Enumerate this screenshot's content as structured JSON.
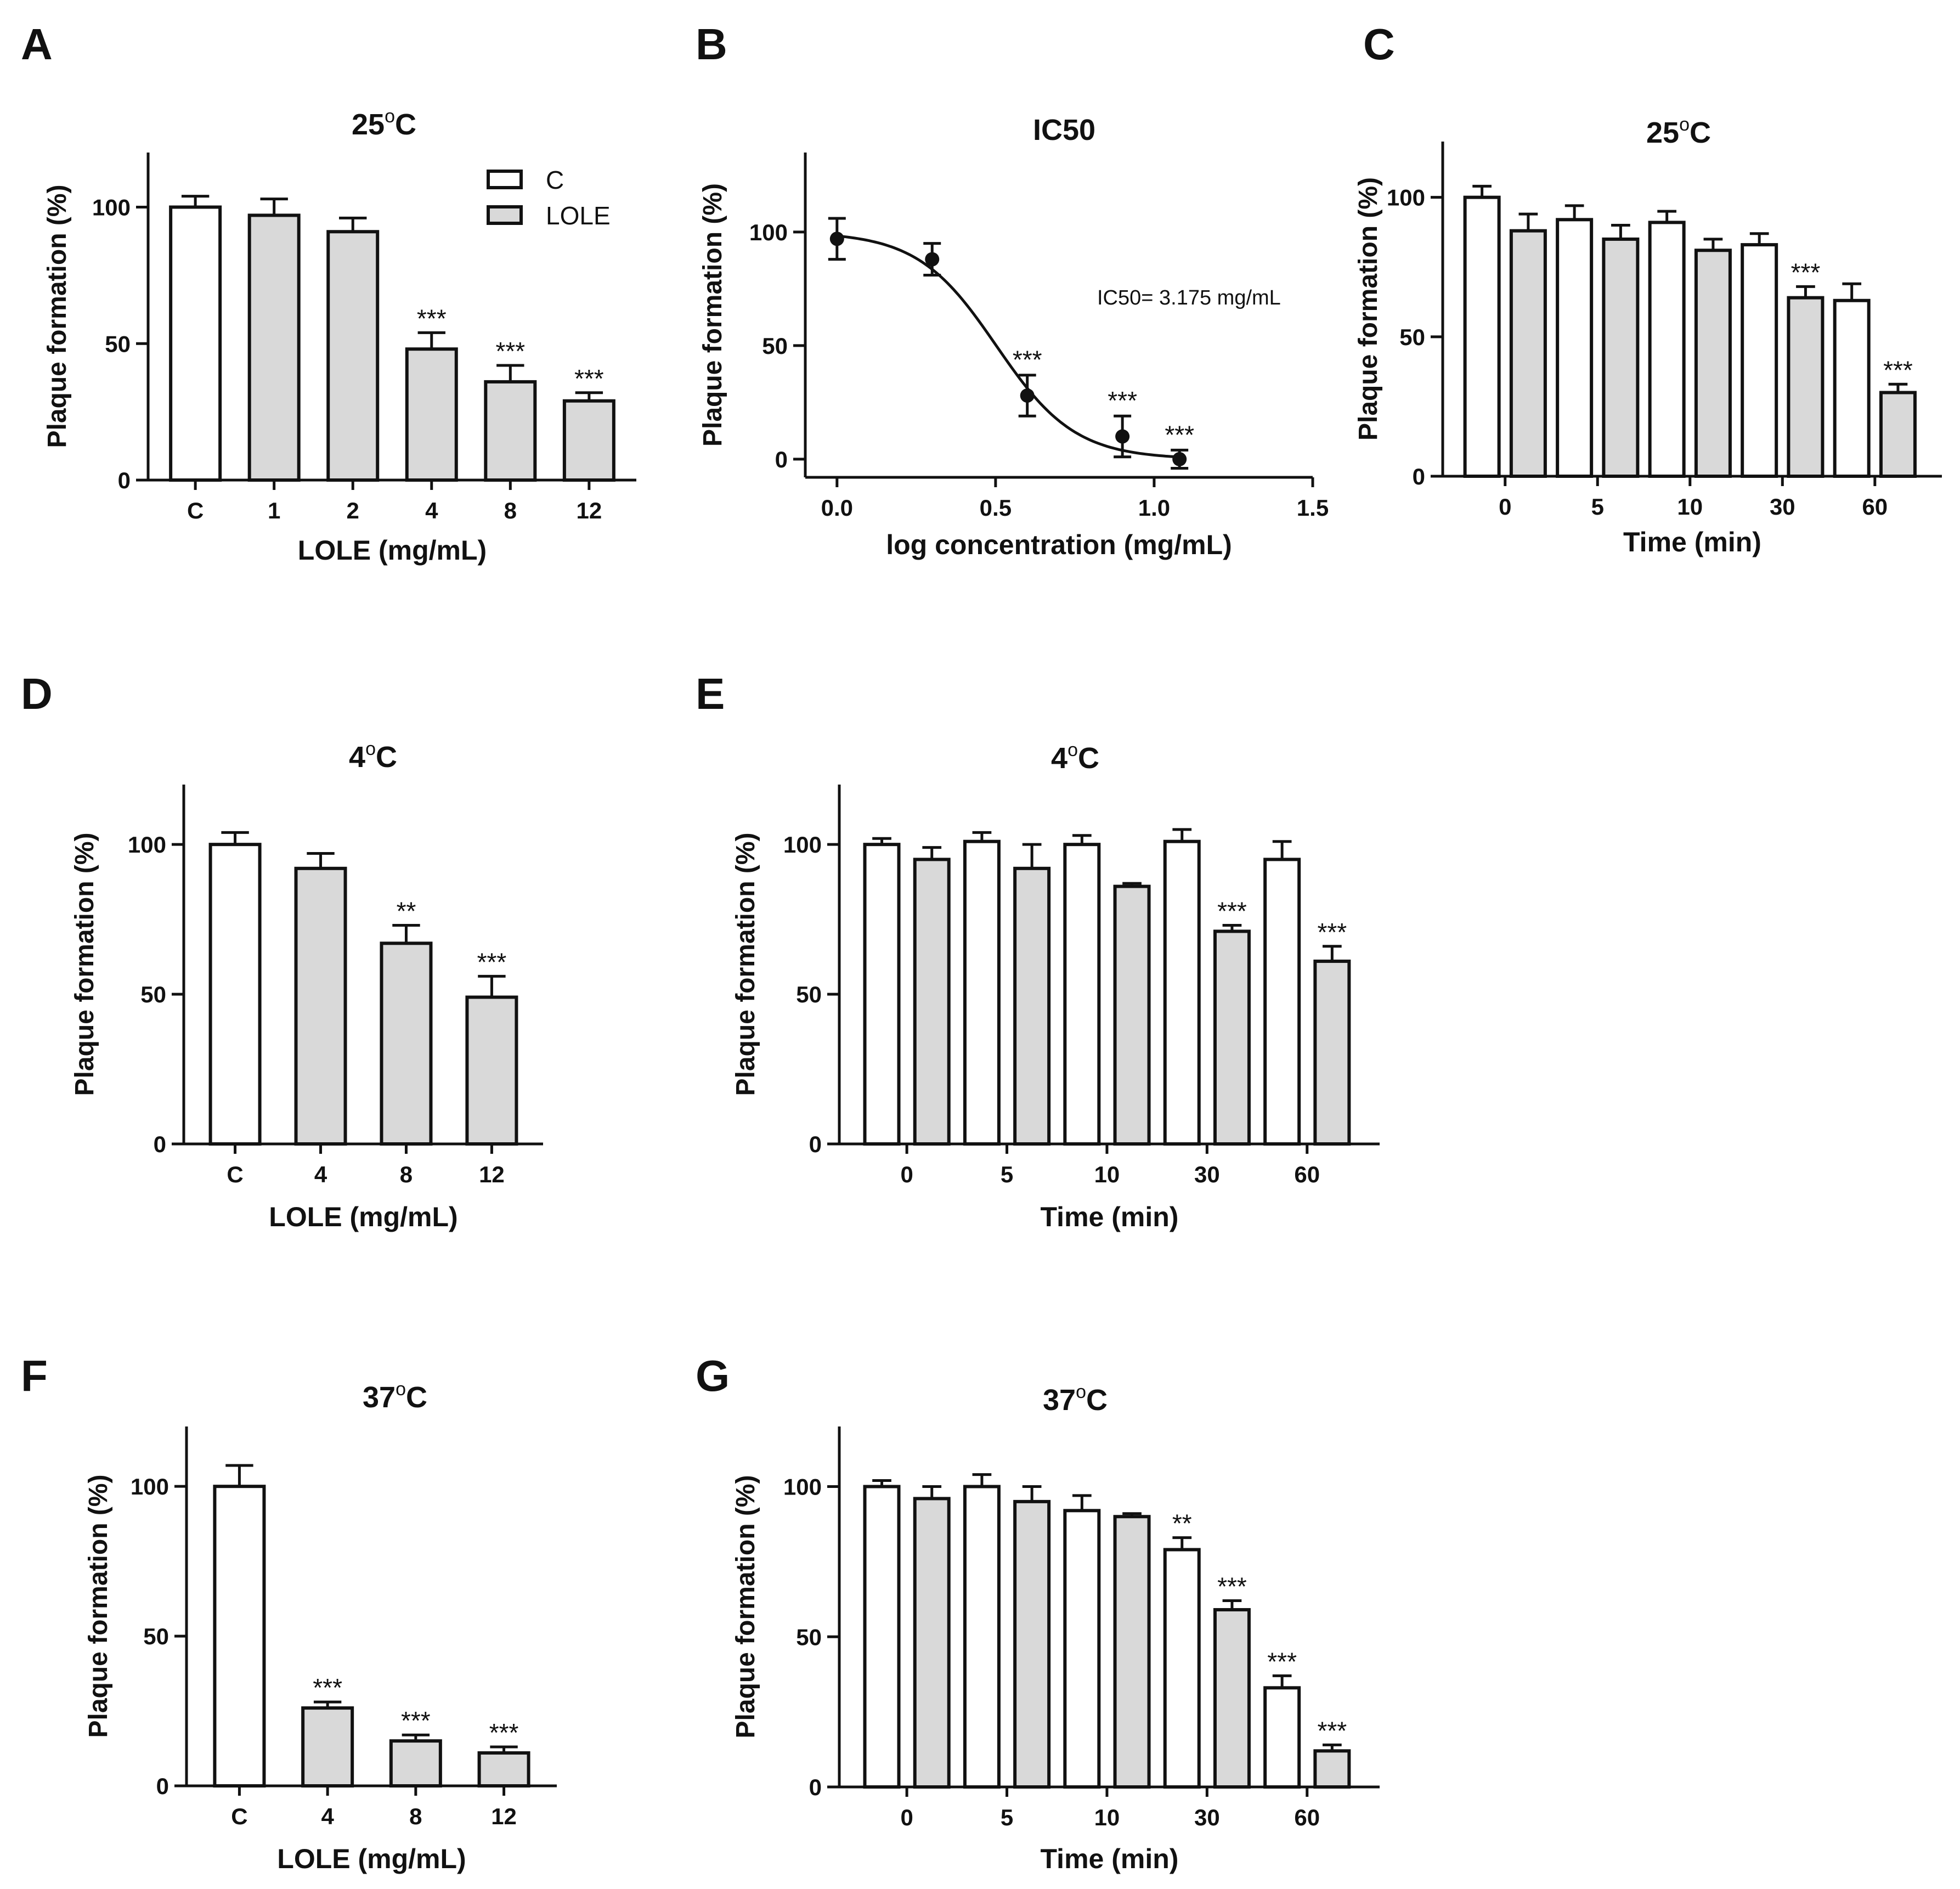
{
  "colors": {
    "control_fill": "#ffffff",
    "treated_fill": "#d9d9d9",
    "stroke": "#111111"
  },
  "chart_data": [
    {
      "id": "A",
      "panel_letter": "A",
      "type": "bar",
      "title": "25",
      "title_unit": "C",
      "ylabel": "Plaque formation (%)",
      "xlabel": "LOLE (mg/mL)",
      "ylim": [
        0,
        120
      ],
      "yticks": [
        0,
        50,
        100
      ],
      "categories": [
        "C",
        "1",
        "2",
        "4",
        "8",
        "12"
      ],
      "groups": [
        "C",
        "LOLE",
        "LOLE",
        "LOLE",
        "LOLE",
        "LOLE"
      ],
      "values": [
        100,
        97,
        91,
        48,
        36,
        29
      ],
      "errors": [
        4,
        6,
        5,
        6,
        6,
        3
      ],
      "significance": [
        "",
        "",
        "",
        "***",
        "***",
        "***"
      ],
      "legend": [
        {
          "label": "C",
          "group": "C"
        },
        {
          "label": "LOLE",
          "group": "LOLE"
        }
      ]
    },
    {
      "id": "B",
      "panel_letter": "B",
      "type": "scatter",
      "title": "IC50",
      "ylabel": "Plaque formation (%)",
      "xlabel": "log concentration (mg/mL)",
      "xlim": [
        -0.1,
        1.5
      ],
      "xticks": [
        "0.0",
        "0.5",
        "1.0",
        "1.5"
      ],
      "ylim": [
        -8,
        135
      ],
      "yticks": [
        0,
        50,
        100
      ],
      "x": [
        0.0,
        0.3,
        0.6,
        0.9,
        1.08
      ],
      "y": [
        97,
        88,
        28,
        10,
        0
      ],
      "errors": [
        9,
        7,
        9,
        9,
        4
      ],
      "significance": [
        "",
        "",
        "***",
        "***",
        "***"
      ],
      "fit": {
        "top": 100,
        "bottom": 0,
        "log_ic50": 0.502,
        "hill": 3.5
      },
      "annotation": "IC50= 3.175 mg/mL"
    },
    {
      "id": "C",
      "panel_letter": "C",
      "type": "bar",
      "title": "25",
      "title_unit": "C",
      "ylabel": "Plaque formation (%)",
      "xlabel": "Time (min)",
      "ylim": [
        0,
        120
      ],
      "yticks": [
        0,
        50,
        100
      ],
      "group_labels": [
        "0",
        "5",
        "10",
        "30",
        "60"
      ],
      "groups": [
        "C",
        "LOLE",
        "C",
        "LOLE",
        "C",
        "LOLE",
        "C",
        "LOLE",
        "C",
        "LOLE"
      ],
      "values": [
        100,
        88,
        92,
        85,
        91,
        81,
        83,
        64,
        63,
        30
      ],
      "errors": [
        4,
        6,
        5,
        5,
        4,
        4,
        4,
        4,
        6,
        3
      ],
      "significance": [
        "",
        "",
        "",
        "",
        "",
        "",
        "",
        "***",
        "",
        "***"
      ]
    },
    {
      "id": "D",
      "panel_letter": "D",
      "type": "bar",
      "title": "4",
      "title_unit": "C",
      "ylabel": "Plaque formation (%)",
      "xlabel": "LOLE (mg/mL)",
      "ylim": [
        0,
        120
      ],
      "yticks": [
        0,
        50,
        100
      ],
      "categories": [
        "C",
        "4",
        "8",
        "12"
      ],
      "groups": [
        "C",
        "LOLE",
        "LOLE",
        "LOLE"
      ],
      "values": [
        100,
        92,
        67,
        49
      ],
      "errors": [
        4,
        5,
        6,
        7
      ],
      "significance": [
        "",
        "",
        "**",
        "***"
      ]
    },
    {
      "id": "E",
      "panel_letter": "E",
      "type": "bar",
      "title": "4",
      "title_unit": "C",
      "ylabel": "Plaque formation (%)",
      "xlabel": "Time (min)",
      "ylim": [
        0,
        120
      ],
      "yticks": [
        0,
        50,
        100
      ],
      "group_labels": [
        "0",
        "5",
        "10",
        "30",
        "60"
      ],
      "groups": [
        "C",
        "LOLE",
        "C",
        "LOLE",
        "C",
        "LOLE",
        "C",
        "LOLE",
        "C",
        "LOLE"
      ],
      "values": [
        100,
        95,
        101,
        92,
        100,
        86,
        101,
        71,
        95,
        61
      ],
      "errors": [
        2,
        4,
        3,
        8,
        3,
        1,
        4,
        2,
        6,
        5
      ],
      "significance": [
        "",
        "",
        "",
        "",
        "",
        "",
        "",
        "***",
        "",
        "***"
      ]
    },
    {
      "id": "F",
      "panel_letter": "F",
      "type": "bar",
      "title": "37",
      "title_unit": "C",
      "ylabel": "Plaque formation (%)",
      "xlabel": "LOLE (mg/mL)",
      "ylim": [
        0,
        120
      ],
      "yticks": [
        0,
        50,
        100
      ],
      "categories": [
        "C",
        "4",
        "8",
        "12"
      ],
      "groups": [
        "C",
        "LOLE",
        "LOLE",
        "LOLE"
      ],
      "values": [
        100,
        26,
        15,
        11
      ],
      "errors": [
        7,
        2,
        2,
        2
      ],
      "significance": [
        "",
        "***",
        "***",
        "***"
      ]
    },
    {
      "id": "G",
      "panel_letter": "G",
      "type": "bar",
      "title": "37",
      "title_unit": "C",
      "ylabel": "Plaque formation (%)",
      "xlabel": "Time (min)",
      "ylim": [
        0,
        120
      ],
      "yticks": [
        0,
        50,
        100
      ],
      "group_labels": [
        "0",
        "5",
        "10",
        "30",
        "60"
      ],
      "groups": [
        "C",
        "LOLE",
        "C",
        "LOLE",
        "C",
        "LOLE",
        "C",
        "LOLE",
        "C",
        "LOLE"
      ],
      "values": [
        100,
        96,
        100,
        95,
        92,
        90,
        79,
        59,
        33,
        12
      ],
      "errors": [
        2,
        4,
        4,
        5,
        5,
        1,
        4,
        3,
        4,
        2
      ],
      "significance": [
        "",
        "",
        "",
        "",
        "",
        "",
        "**",
        "***",
        "***",
        "***"
      ]
    }
  ]
}
